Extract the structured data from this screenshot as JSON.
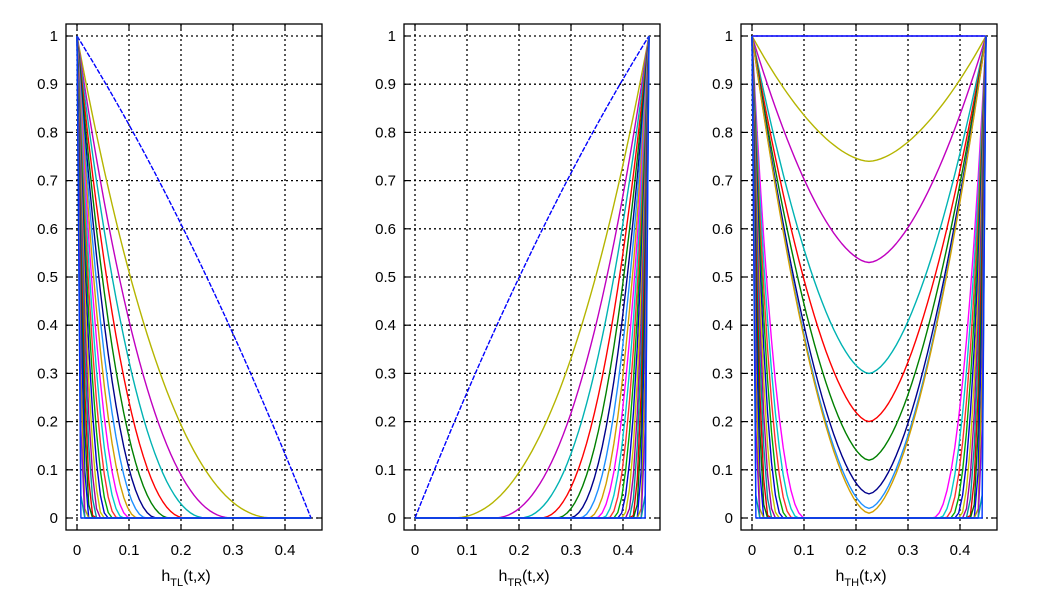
{
  "chart_data": [
    {
      "type": "line",
      "panel": "TL",
      "xlabel": "h",
      "xlabel_sub": "TL",
      "xlabel_tail": "(t,x)",
      "xlim": [
        0,
        0.45
      ],
      "ylim": [
        0,
        1
      ],
      "xticks": [
        "0",
        "0.1",
        "0.2",
        "0.3",
        "0.4"
      ],
      "yticks": [
        "0",
        "0.1",
        "0.2",
        "0.3",
        "0.4",
        "0.5",
        "0.6",
        "0.7",
        "0.8",
        "0.9",
        "1"
      ],
      "grid": true,
      "series_count": 24,
      "series_decay_widths": [
        0.45,
        0.38,
        0.3,
        0.25,
        0.21,
        0.18,
        0.155,
        0.135,
        0.118,
        0.103,
        0.09,
        0.079,
        0.069,
        0.06,
        0.052,
        0.045,
        0.039,
        0.033,
        0.028,
        0.023,
        0.018,
        0.014,
        0.01,
        0.006
      ]
    },
    {
      "type": "line",
      "panel": "TR",
      "xlabel": "h",
      "xlabel_sub": "TR",
      "xlabel_tail": "(t,x)",
      "xlim": [
        0,
        0.45
      ],
      "ylim": [
        0,
        1
      ],
      "xticks": [
        "0",
        "0.1",
        "0.2",
        "0.3",
        "0.4"
      ],
      "yticks": [
        "0",
        "0.1",
        "0.2",
        "0.3",
        "0.4",
        "0.5",
        "0.6",
        "0.7",
        "0.8",
        "0.9",
        "1"
      ],
      "grid": true,
      "series_count": 24,
      "series_decay_widths": [
        0.45,
        0.38,
        0.3,
        0.25,
        0.21,
        0.18,
        0.155,
        0.135,
        0.118,
        0.103,
        0.09,
        0.079,
        0.069,
        0.06,
        0.052,
        0.045,
        0.039,
        0.033,
        0.028,
        0.023,
        0.018,
        0.014,
        0.01,
        0.006
      ]
    },
    {
      "type": "line",
      "panel": "TH",
      "xlabel": "h",
      "xlabel_sub": "TH",
      "xlabel_tail": "(t,x)",
      "xlim": [
        0,
        0.45
      ],
      "ylim": [
        0,
        1
      ],
      "xticks": [
        "0",
        "0.1",
        "0.2",
        "0.3",
        "0.4"
      ],
      "yticks": [
        "0",
        "0.1",
        "0.2",
        "0.3",
        "0.4",
        "0.5",
        "0.6",
        "0.7",
        "0.8",
        "0.9",
        "1"
      ],
      "grid": true,
      "series_count": 24,
      "series_midpoint_minima": [
        1.0,
        0.74,
        0.53,
        0.3,
        0.2,
        0.12,
        0.05,
        0.02,
        0.01,
        0.0,
        0.0,
        0.0,
        0.0,
        0.0,
        0.0,
        0.0,
        0.0,
        0.0,
        0.0,
        0.0,
        0.0,
        0.0,
        0.0,
        0.0
      ]
    }
  ],
  "series_colors": [
    "#0000ff",
    "#b5b500",
    "#c000c0",
    "#00b3b3",
    "#ff0000",
    "#008000",
    "#00008b",
    "#1e90ff",
    "#d2a000",
    "#ff00ff",
    "#00cccc",
    "#ff3030",
    "#00aa00",
    "#0000cc",
    "#c8c800",
    "#a000a0",
    "#009999",
    "#e00000",
    "#007700",
    "#0000ee",
    "#aaaa00",
    "#9900cc",
    "#00a0a0",
    "#0033ff"
  ]
}
